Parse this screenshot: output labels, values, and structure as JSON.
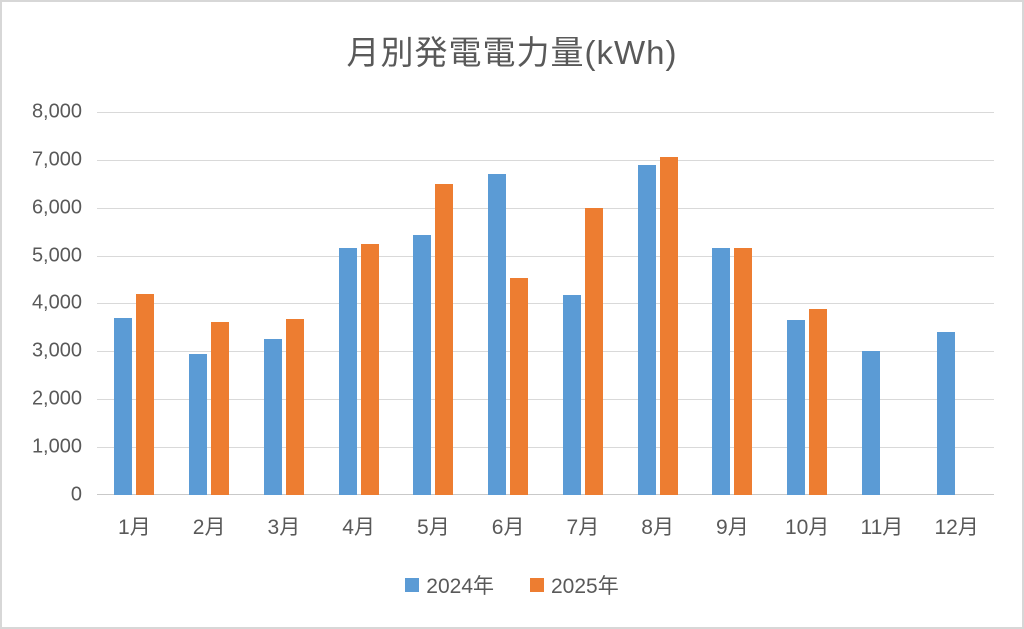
{
  "title": "月別発電電力量(kWh)",
  "colors": {
    "series_2024": "#5B9BD5",
    "series_2025": "#ED7D31",
    "text": "#595959",
    "gridline": "#D9D9D9",
    "frame_border": "#D7D7D7",
    "background": "#FFFFFF"
  },
  "chart_data": {
    "type": "bar",
    "title": "月別発電電力量(kWh)",
    "categories": [
      "1月",
      "2月",
      "3月",
      "4月",
      "5月",
      "6月",
      "7月",
      "8月",
      "9月",
      "10月",
      "11月",
      "12月"
    ],
    "series": [
      {
        "name": "2024年",
        "color": "#5B9BD5",
        "values": [
          3700,
          2950,
          3250,
          5150,
          5430,
          6700,
          4180,
          6900,
          5150,
          3650,
          3000,
          3400
        ]
      },
      {
        "name": "2025年",
        "color": "#ED7D31",
        "values": [
          4200,
          3620,
          3670,
          5250,
          6500,
          4530,
          6000,
          7050,
          5160,
          3880,
          null,
          null
        ]
      }
    ],
    "xlabel": "",
    "ylabel": "",
    "ylim": [
      0,
      8000
    ],
    "ytick_step": 1000,
    "ytick_labels": [
      "0",
      "1,000",
      "2,000",
      "3,000",
      "4,000",
      "5,000",
      "6,000",
      "7,000",
      "8,000"
    ],
    "grid": true,
    "legend_position": "bottom"
  }
}
